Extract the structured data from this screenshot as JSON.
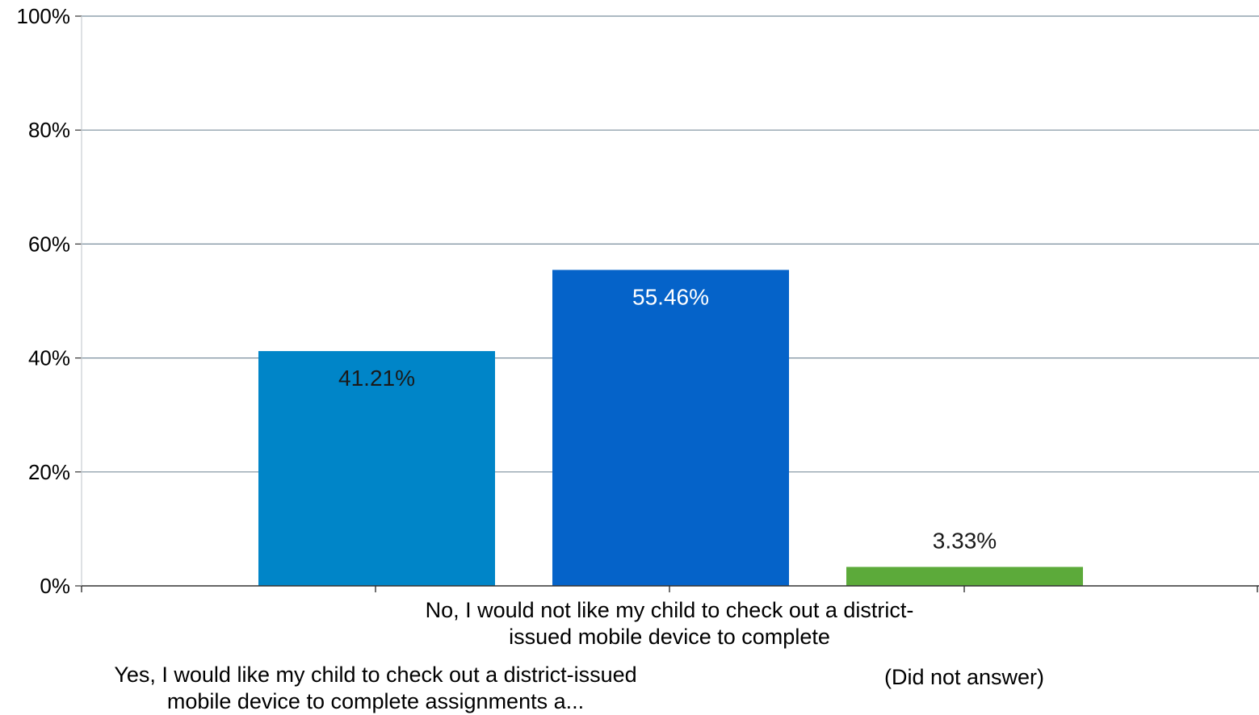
{
  "chart_data": {
    "type": "bar",
    "title": "",
    "xlabel": "",
    "ylabel": "",
    "ylim": [
      0,
      100
    ],
    "yticks": [
      "0%",
      "20%",
      "40%",
      "60%",
      "80%",
      "100%"
    ],
    "grid": true,
    "legend": "none",
    "categories": [
      "Yes, I would like my child to check out a district-issued mobile device to complete assignments a...",
      "No, I would not like my child to check out a district-issued mobile device to complete",
      "(Did not answer)"
    ],
    "category_label_lines": [
      [
        "Yes, I would like my child to check out a district-issued",
        "mobile device to complete assignments a..."
      ],
      [
        "No, I would not like my child to check out a district-",
        "issued mobile device to complete"
      ],
      [
        "(Did not answer)"
      ]
    ],
    "values": [
      41.21,
      55.46,
      3.33
    ],
    "value_labels": [
      "41.21%",
      "55.46%",
      "3.33%"
    ],
    "colors": [
      "#0085C8",
      "#0563C9",
      "#5CAA3A"
    ],
    "label_colors": [
      "#1a1a1a",
      "#ffffff",
      "#1a1a1a"
    ]
  }
}
